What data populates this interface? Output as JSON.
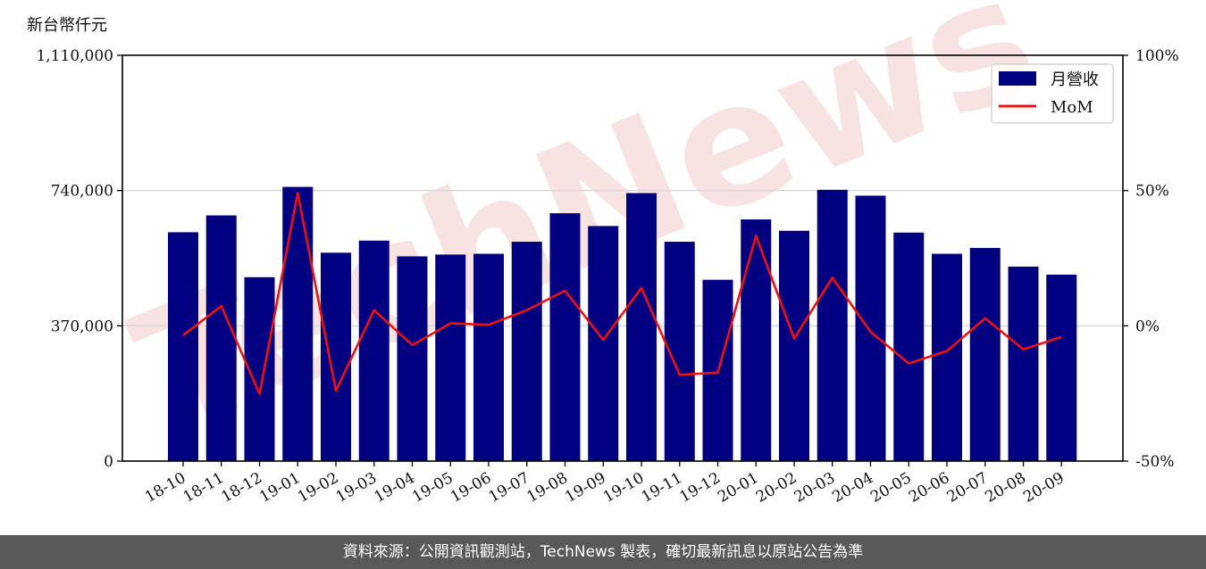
{
  "unit_label": "新台幣仟元",
  "footer_text": "資料來源：公開資訊觀測站，TechNews 製表，確切最新訊息以原站公告為準",
  "colors": {
    "bar": "#000080",
    "line": "#ee1111",
    "grid": "#d9d9d9",
    "watermark": "#f2c8c8"
  },
  "watermark_text": "TechNews",
  "chart_data": {
    "type": "bar",
    "categories": [
      "18-10",
      "18-11",
      "18-12",
      "19-01",
      "19-02",
      "19-03",
      "19-04",
      "19-05",
      "19-06",
      "19-07",
      "19-08",
      "19-09",
      "19-10",
      "19-11",
      "19-12",
      "20-01",
      "20-02",
      "20-03",
      "20-04",
      "20-05",
      "20-06",
      "20-07",
      "20-08",
      "20-09"
    ],
    "series": [
      {
        "name": "月營收",
        "type": "bar",
        "axis": "left",
        "values": [
          626000,
          672000,
          503000,
          750000,
          570000,
          603000,
          560000,
          565000,
          567000,
          600000,
          678000,
          643000,
          733000,
          600000,
          496000,
          661000,
          630000,
          742000,
          726000,
          625000,
          567000,
          583000,
          532000,
          510000
        ]
      },
      {
        "name": "MoM",
        "type": "line",
        "axis": "right",
        "values": [
          -3.5,
          7.3,
          -25.2,
          49.1,
          -24.0,
          5.8,
          -7.1,
          0.9,
          0.4,
          5.8,
          13.0,
          -5.2,
          14.0,
          -18.1,
          -17.3,
          33.3,
          -4.7,
          17.8,
          -2.2,
          -13.9,
          -9.3,
          2.8,
          -8.7,
          -4.1
        ]
      }
    ],
    "ylim_left": [
      0,
      1110000
    ],
    "yticks_left": [
      "0",
      "370,000",
      "740,000",
      "1,110,000"
    ],
    "ylim_right": [
      -50,
      100
    ],
    "yticks_right": [
      "-50%",
      "0%",
      "50%",
      "100%"
    ],
    "grid": "horizontal",
    "legend_position": "top-right"
  }
}
